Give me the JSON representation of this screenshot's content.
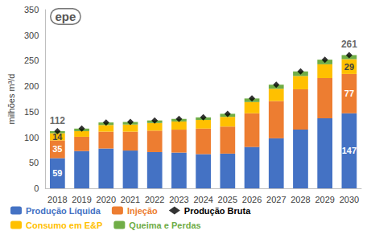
{
  "chart_data": {
    "type": "bar",
    "stacked": true,
    "data_labels": true,
    "grid": false,
    "legend": "bottom",
    "annotations": [
      "epe"
    ],
    "ylabel": "milhões m³/d",
    "categories": [
      "2018",
      "2019",
      "2020",
      "2021",
      "2022",
      "2023",
      "2024",
      "2025",
      "2026",
      "2027",
      "2028",
      "2029",
      "2030"
    ],
    "ylim": [
      0,
      350
    ],
    "yticks": [
      0,
      50,
      100,
      150,
      200,
      250,
      300,
      350
    ],
    "series": [
      {
        "name": "Produção Líquida",
        "color": "#4472c4",
        "values": [
          59,
          73,
          78,
          74,
          71,
          70,
          67,
          68,
          81,
          98,
          115,
          137,
          147
        ],
        "value_labels": [
          "59",
          null,
          null,
          null,
          null,
          null,
          null,
          null,
          null,
          null,
          null,
          null,
          "147"
        ]
      },
      {
        "name": "Injeção",
        "color": "#ed7d31",
        "values": [
          35,
          28,
          33,
          37,
          42,
          45,
          50,
          53,
          66,
          73,
          79,
          79,
          77
        ],
        "value_labels": [
          "35",
          null,
          null,
          null,
          null,
          null,
          null,
          null,
          null,
          null,
          null,
          null,
          "77"
        ]
      },
      {
        "name": "Produção Bruta",
        "type": "scatter",
        "marker": "diamond",
        "color": "#000000",
        "values": [
          112,
          117,
          129,
          130,
          133,
          136,
          139,
          146,
          176,
          203,
          229,
          252,
          261
        ],
        "value_labels": [
          "112",
          null,
          null,
          null,
          null,
          null,
          null,
          null,
          null,
          null,
          null,
          null,
          "261"
        ]
      },
      {
        "name": "Consumo em E&P",
        "color": "#ffc000",
        "values": [
          14,
          11,
          13,
          14,
          15,
          16,
          17,
          19,
          22,
          24,
          26,
          27,
          29
        ],
        "value_labels": [
          "14",
          null,
          null,
          null,
          null,
          null,
          null,
          null,
          null,
          null,
          null,
          null,
          "29"
        ]
      },
      {
        "name": "Queima e Perdas",
        "color": "#70ad47",
        "values": [
          4,
          5,
          5,
          5,
          5,
          5,
          5,
          6,
          7,
          8,
          9,
          9,
          8
        ]
      }
    ]
  }
}
